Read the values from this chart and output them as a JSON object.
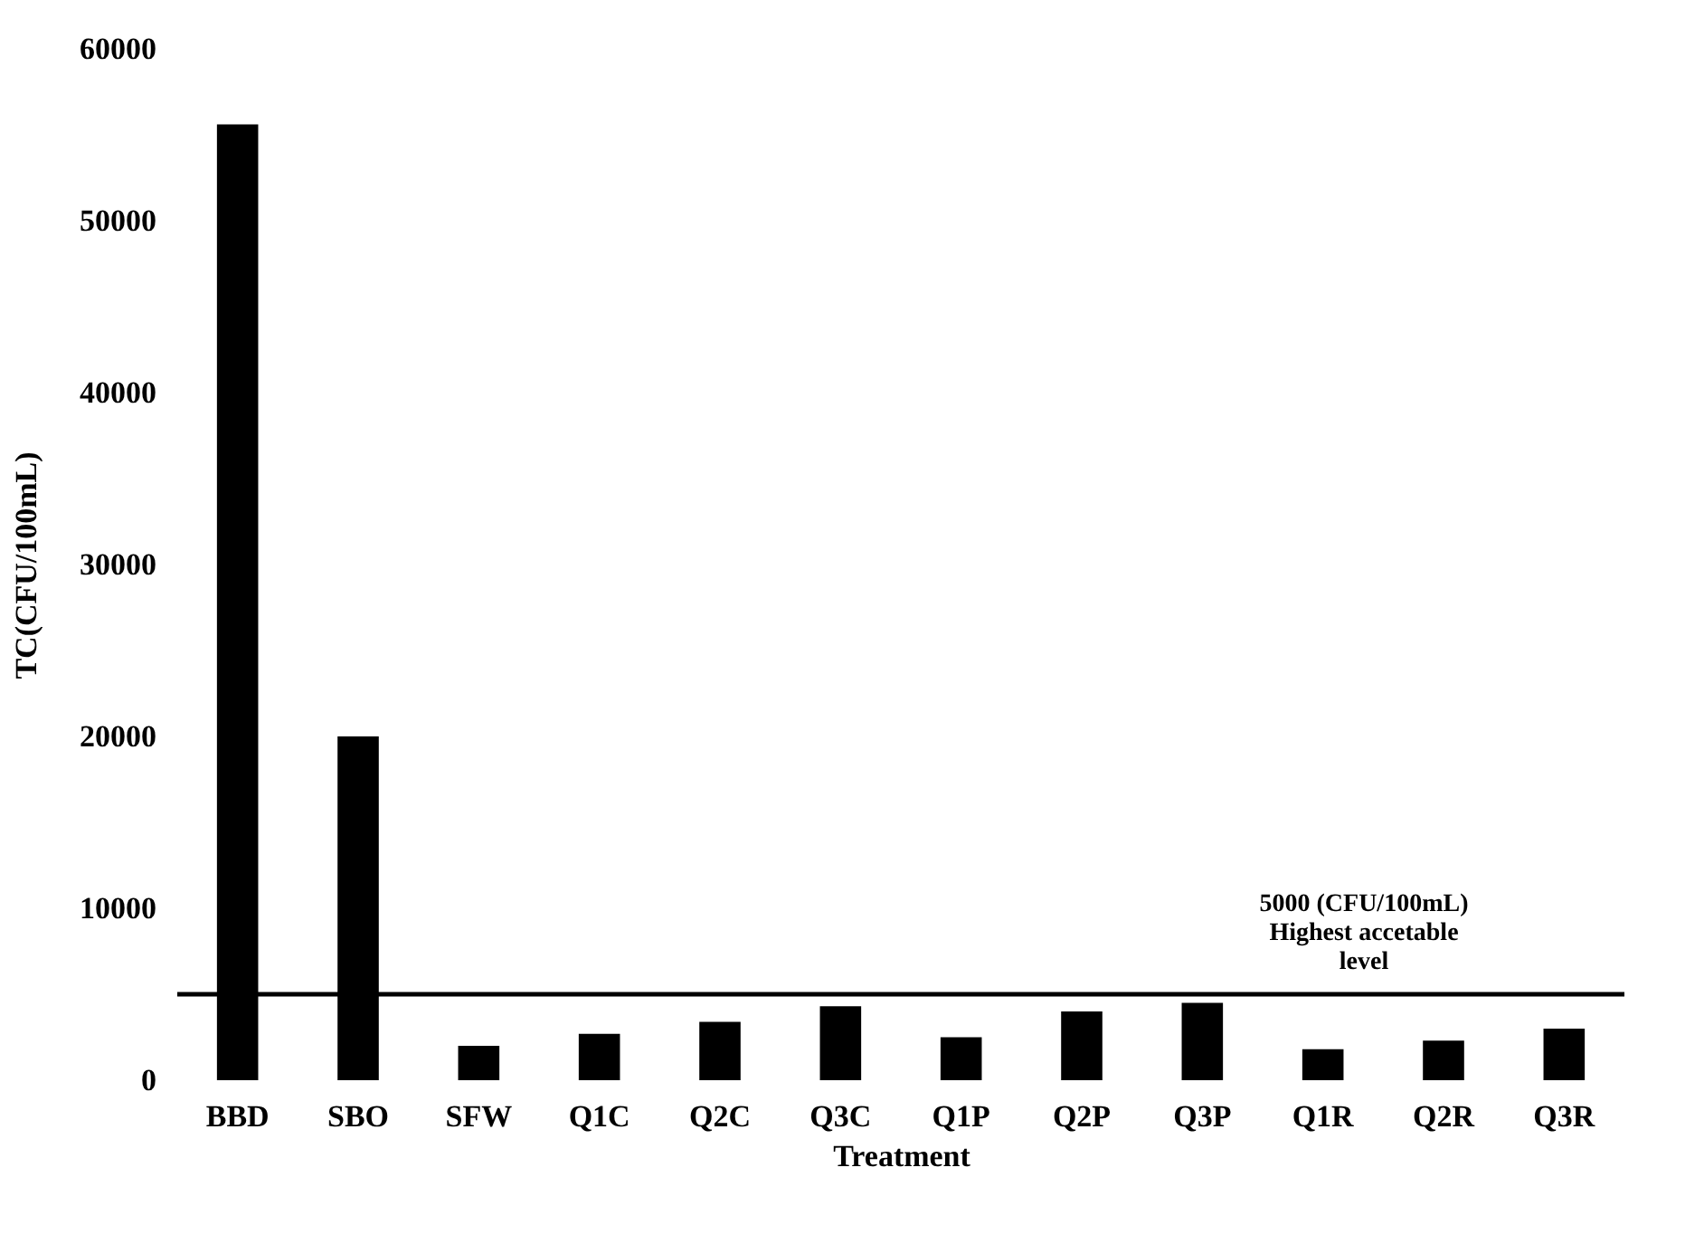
{
  "chart_data": {
    "type": "bar",
    "xlabel": "Treatment",
    "ylabel": "TC(CFU/100mL)",
    "categories": [
      "BBD",
      "SBO",
      "SFW",
      "Q1C",
      "Q2C",
      "Q3C",
      "Q1P",
      "Q2P",
      "Q3P",
      "Q1R",
      "Q2R",
      "Q3R"
    ],
    "values": [
      55600,
      20000,
      2000,
      2700,
      3400,
      4300,
      2500,
      4000,
      4500,
      1800,
      2300,
      3000
    ],
    "color": "#000000",
    "ylim": [
      0,
      60000
    ],
    "yticks": [
      0,
      10000,
      20000,
      30000,
      40000,
      50000,
      60000
    ],
    "grid": false,
    "ref_lines": [
      {
        "axis": "y",
        "value": 5000,
        "label": "5000 (CFU/100mL)\nHighest accetable\nlevel",
        "color": "#000000"
      }
    ]
  }
}
